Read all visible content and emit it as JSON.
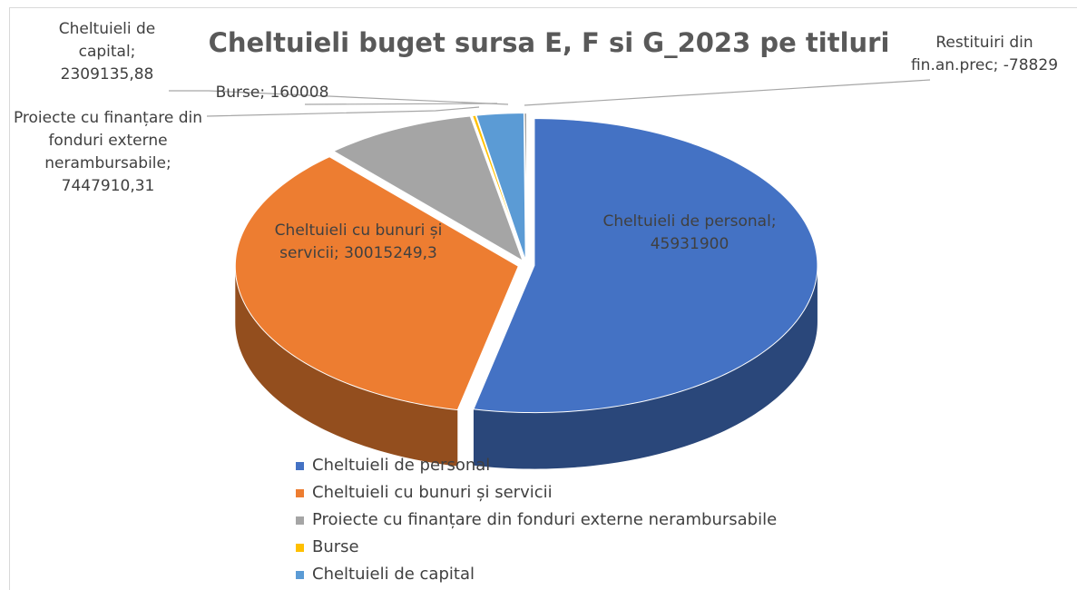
{
  "chart_data": {
    "type": "pie3d",
    "title": "Cheltuieli buget sursa E, F si G_2023 pe titluri",
    "categories": [
      "Cheltuieli de personal",
      "Cheltuieli cu bunuri și servicii",
      "Proiecte cu finanțare din fonduri externe nerambursabile",
      "Burse",
      "Cheltuieli de capital",
      "Restituiri din fin.an.prec"
    ],
    "values": [
      45931900,
      30015249.3,
      7447910.31,
      160008,
      2309135.88,
      -78829
    ],
    "data_labels": [
      "Cheltuieli de personal; 45931900",
      "Cheltuieli cu bunuri și servicii; 30015249,3",
      "Proiecte cu finanțare din fonduri externe nerambursabile; 7447910,31",
      "Burse; 160008",
      "Cheltuieli de capital; 2309135,88",
      "Restituiri din fin.an.prec; -78829"
    ],
    "colors": [
      "#4472c4",
      "#ed7d31",
      "#a5a5a5",
      "#ffc000",
      "#5b9bd5",
      "#404040"
    ],
    "legend": "bottom"
  }
}
